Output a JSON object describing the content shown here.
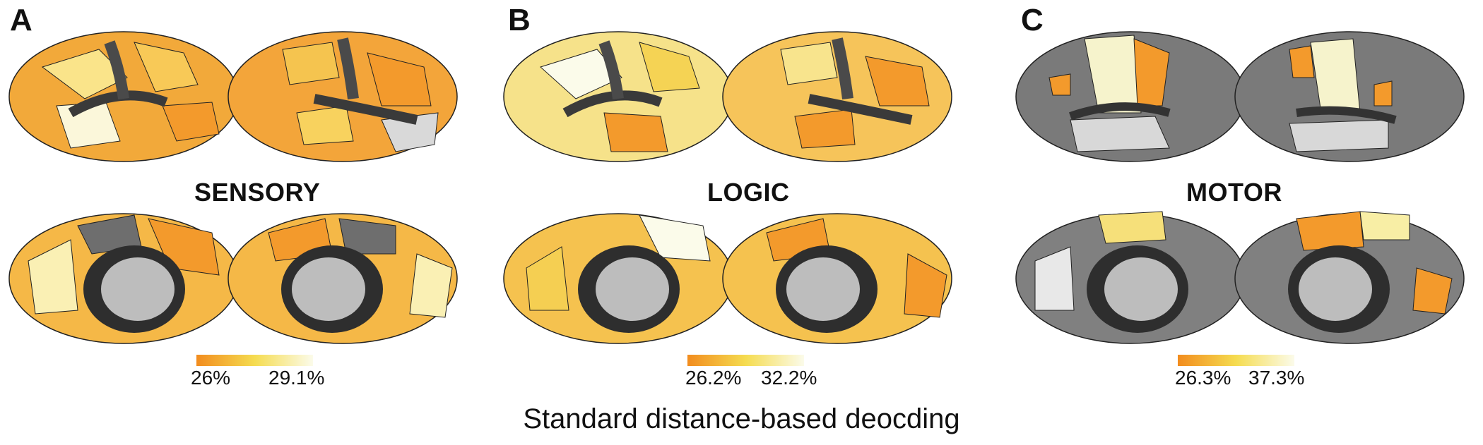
{
  "caption": "Standard distance-based deocding",
  "colors": {
    "low": "#f28c1e",
    "mid": "#f5dc50",
    "high": "#fbfbea",
    "inactive": "#6e6e6e",
    "medial_wall": "#bdbdbd",
    "sulcus": "#3a3a3a"
  },
  "panels": [
    {
      "letter": "A",
      "title": "SENSORY",
      "min_label": "26%",
      "max_label": "29.1%"
    },
    {
      "letter": "B",
      "title": "LOGIC",
      "min_label": "26.2%",
      "max_label": "32.2%"
    },
    {
      "letter": "C",
      "title": "MOTOR",
      "min_label": "26.3%",
      "max_label": "37.3%"
    }
  ]
}
